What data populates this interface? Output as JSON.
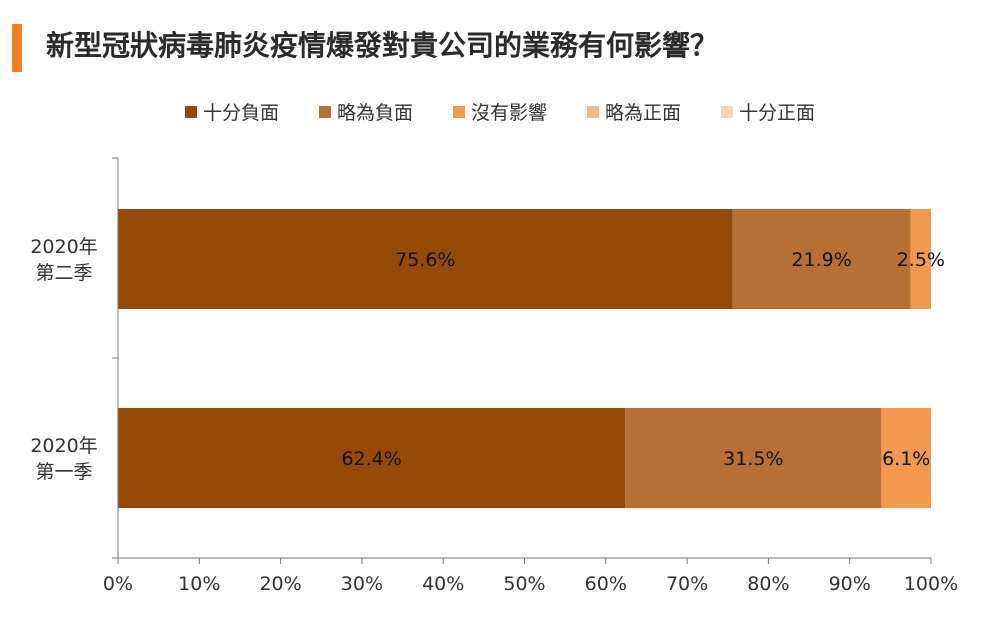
{
  "title": "新型冠狀病毒肺炎疫情爆發對貴公司的業務有何影響？",
  "chart_data": {
    "type": "bar",
    "orientation": "horizontal",
    "stacked": true,
    "categories": [
      {
        "line1": "2020年",
        "line2": "第二季"
      },
      {
        "line1": "2020年",
        "line2": "第一季"
      }
    ],
    "series": [
      {
        "name": "十分負面",
        "color": "#964a08",
        "values": [
          75.6,
          62.4
        ],
        "labels": [
          "75.6%",
          "62.4%"
        ]
      },
      {
        "name": "略為負面",
        "color": "#b86f35",
        "values": [
          21.9,
          31.5
        ],
        "labels": [
          "21.9%",
          "31.5%"
        ]
      },
      {
        "name": "沒有影響",
        "color": "#f19a4f",
        "values": [
          2.5,
          6.1
        ],
        "labels": [
          "2.5%",
          "6.1%"
        ]
      },
      {
        "name": "略為正面",
        "color": "#f6b690",
        "values": [
          0,
          0
        ],
        "labels": [
          "",
          ""
        ]
      },
      {
        "name": "十分正面",
        "color": "#f9d2c0",
        "values": [
          0,
          0
        ],
        "labels": [
          "",
          ""
        ]
      }
    ],
    "xlim": [
      0,
      100
    ],
    "xticks": [
      "0%",
      "10%",
      "20%",
      "30%",
      "40%",
      "50%",
      "60%",
      "70%",
      "80%",
      "90%",
      "100%"
    ],
    "legend_position": "top",
    "grid": false
  }
}
